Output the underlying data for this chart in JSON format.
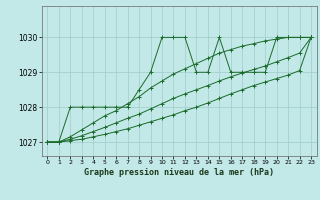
{
  "title": "Graphe pression niveau de la mer (hPa)",
  "bg_color": "#c2e8e8",
  "grid_color": "#a0cccc",
  "line_color": "#1a6b2a",
  "ylim": [
    1026.6,
    1030.9
  ],
  "yticks": [
    1027,
    1028,
    1029,
    1030
  ],
  "xlim": [
    -0.5,
    23.5
  ],
  "xticks": [
    0,
    1,
    2,
    3,
    4,
    5,
    6,
    7,
    8,
    9,
    10,
    11,
    12,
    13,
    14,
    15,
    16,
    17,
    18,
    19,
    20,
    21,
    22,
    23
  ],
  "series": [
    [
      1027.0,
      1027.0,
      1028.0,
      1028.0,
      1028.0,
      1028.0,
      1028.0,
      1028.0,
      1028.5,
      1029.0,
      1030.0,
      1030.0,
      1030.0,
      1029.0,
      1029.0,
      1030.0,
      1029.0,
      1029.0,
      1029.0,
      1029.0,
      1030.0,
      1030.0,
      1030.0,
      1030.0
    ],
    [
      1027.0,
      1027.0,
      1027.15,
      1027.35,
      1027.55,
      1027.75,
      1027.9,
      1028.1,
      1028.3,
      1028.55,
      1028.75,
      1028.95,
      1029.1,
      1029.25,
      1029.4,
      1029.55,
      1029.65,
      1029.75,
      1029.82,
      1029.9,
      1029.95,
      1030.0,
      1030.0,
      1030.0
    ],
    [
      1027.0,
      1027.0,
      1027.08,
      1027.18,
      1027.3,
      1027.42,
      1027.55,
      1027.68,
      1027.8,
      1027.95,
      1028.1,
      1028.25,
      1028.38,
      1028.5,
      1028.62,
      1028.75,
      1028.87,
      1028.98,
      1029.08,
      1029.18,
      1029.3,
      1029.42,
      1029.55,
      1030.0
    ],
    [
      1027.0,
      1027.0,
      1027.04,
      1027.08,
      1027.15,
      1027.22,
      1027.3,
      1027.38,
      1027.48,
      1027.58,
      1027.68,
      1027.78,
      1027.9,
      1028.0,
      1028.12,
      1028.25,
      1028.38,
      1028.5,
      1028.62,
      1028.72,
      1028.82,
      1028.92,
      1029.05,
      1030.0
    ]
  ]
}
